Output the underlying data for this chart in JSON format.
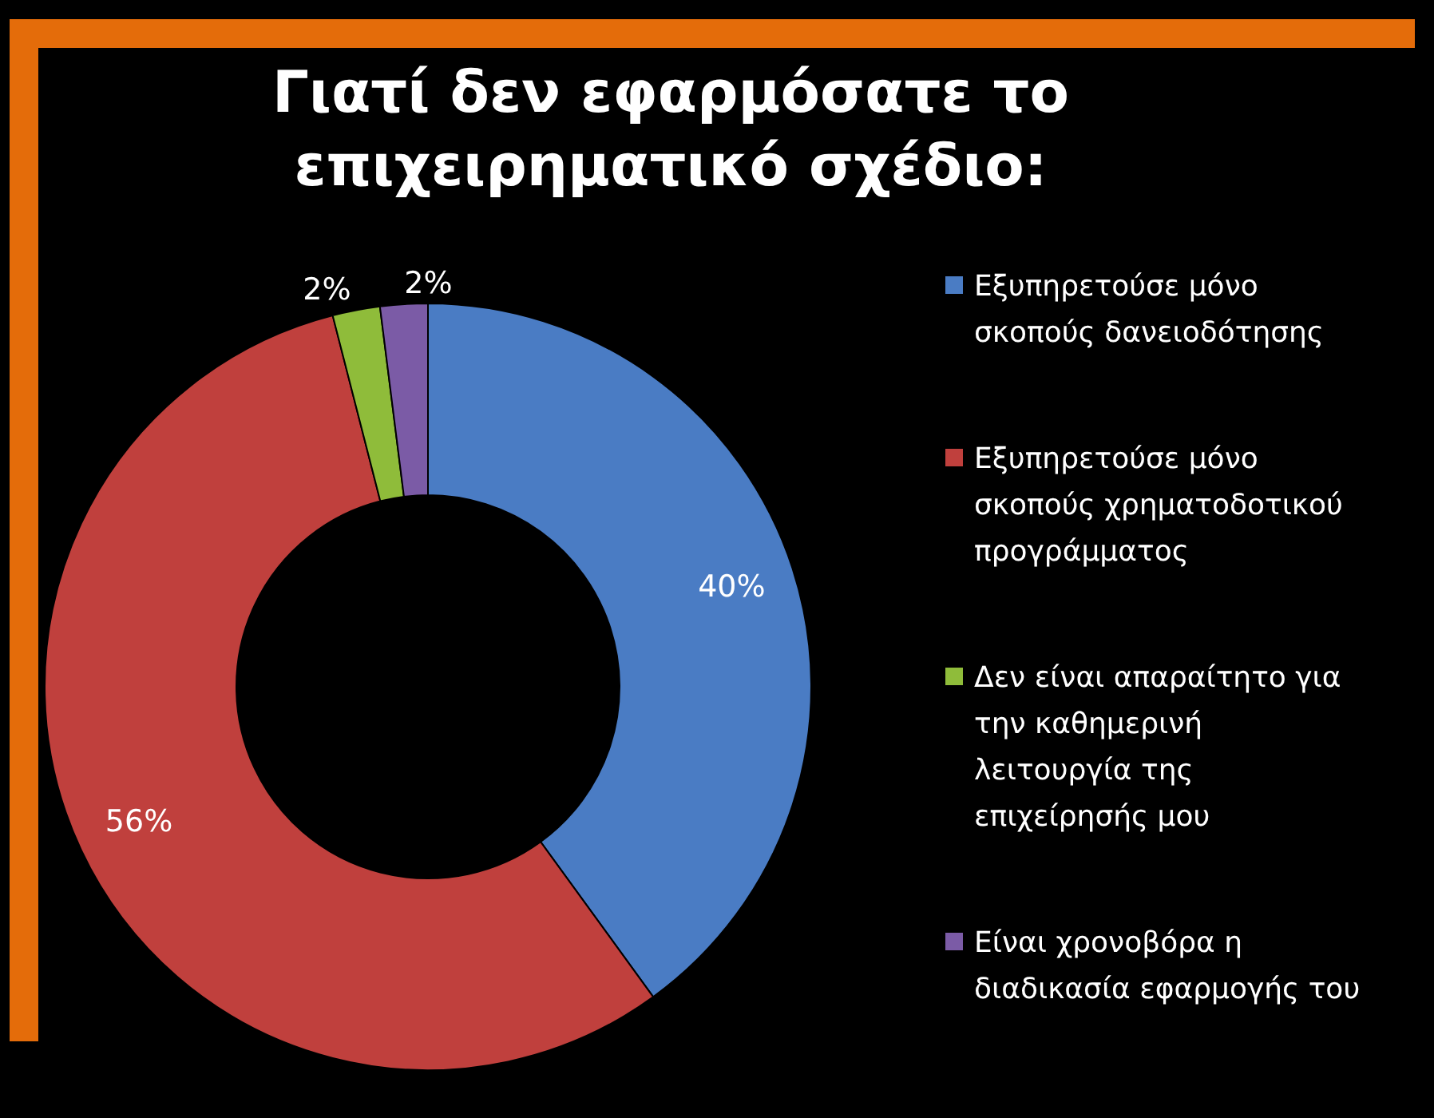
{
  "chart_data": {
    "type": "donut",
    "title": "Γιατί δεν εφαρμόσατε το επιχειρηματικό σχέδιο:",
    "categories": [
      "Εξυπηρετούσε μόνο σκοπούς δανειοδότησης",
      "Εξυπηρετούσε μόνο σκοπούς χρηματοδοτικού προγράμματος",
      "Δεν είναι απαραίτητο για την καθημερινή λειτουργία της επιχείρησής μου",
      "Είναι χρονοβόρα η διαδικασία εφαρμογής του"
    ],
    "values": [
      40,
      56,
      2,
      2
    ],
    "colors": [
      "#4a7cc4",
      "#c0403d",
      "#8fbc3a",
      "#7b5ba6"
    ],
    "value_labels": [
      "40%",
      "56%",
      "2%",
      "2%"
    ],
    "legend": "right"
  }
}
